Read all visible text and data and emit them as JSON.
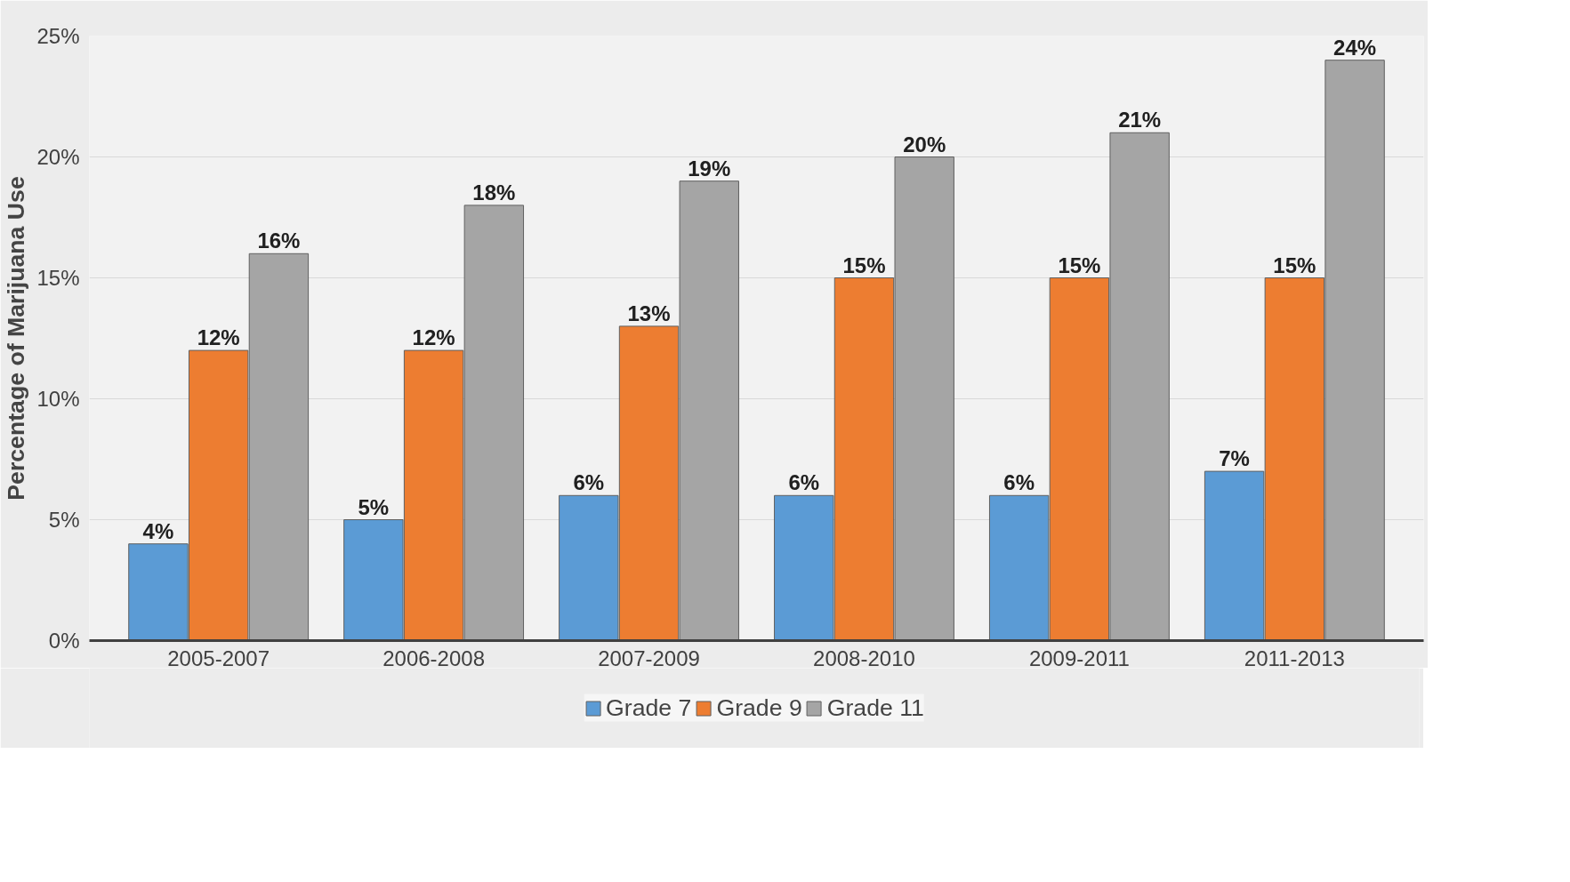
{
  "chart_data": {
    "type": "bar",
    "ylabel": "Percentage of Marijuana Use",
    "categories": [
      "2005-2007",
      "2006-2008",
      "2007-2009",
      "2008-2010",
      "2009-2011",
      "2011-2013"
    ],
    "series": [
      {
        "name": "Grade 7",
        "color": "#5b9bd5",
        "values": [
          4,
          5,
          6,
          6,
          6,
          7
        ],
        "value_labels": [
          "4%",
          "5%",
          "6%",
          "6%",
          "6%",
          "7%"
        ]
      },
      {
        "name": "Grade 9",
        "color": "#ed7d31",
        "values": [
          12,
          12,
          13,
          15,
          15,
          15
        ],
        "value_labels": [
          "12%",
          "12%",
          "13%",
          "15%",
          "15%",
          "15%"
        ]
      },
      {
        "name": "Grade 11",
        "color": "#a5a5a5",
        "values": [
          16,
          18,
          19,
          20,
          21,
          24
        ],
        "value_labels": [
          "16%",
          "18%",
          "19%",
          "20%",
          "21%",
          "24%"
        ]
      }
    ],
    "ylim": [
      0,
      25
    ],
    "yticks": [
      {
        "value": 0,
        "label": "0%"
      },
      {
        "value": 5,
        "label": "5%"
      },
      {
        "value": 10,
        "label": "10%"
      },
      {
        "value": 15,
        "label": "15%"
      },
      {
        "value": 20,
        "label": "20%"
      },
      {
        "value": 25,
        "label": "25%"
      }
    ],
    "grid": "y",
    "legend": "bottom"
  }
}
